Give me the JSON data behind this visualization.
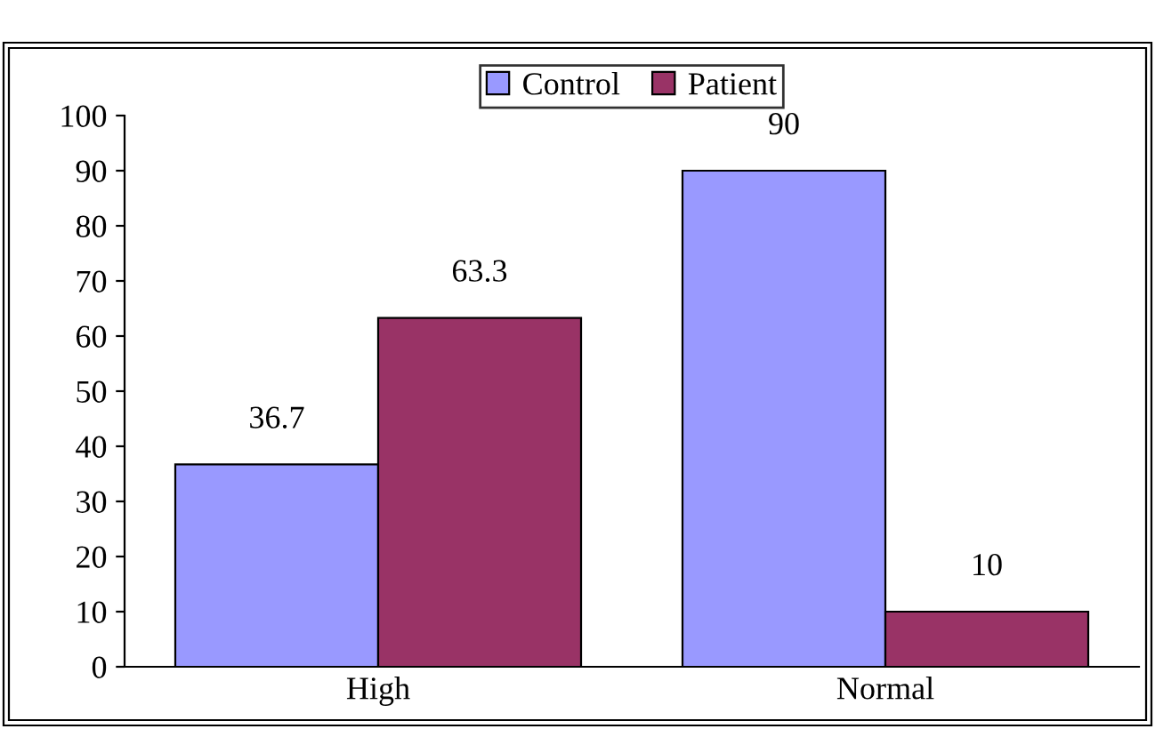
{
  "chart_data": {
    "type": "bar",
    "categories": [
      "High",
      "Normal"
    ],
    "series": [
      {
        "name": "Control",
        "color": "#9999ff",
        "values": [
          36.7,
          90
        ]
      },
      {
        "name": "Patient",
        "color": "#993366",
        "values": [
          63.3,
          10
        ]
      }
    ],
    "ylim": [
      0,
      100
    ],
    "yticks": [
      0,
      10,
      20,
      30,
      40,
      50,
      60,
      70,
      80,
      90,
      100
    ],
    "grid": false,
    "legend": "top",
    "data_labels": true
  }
}
